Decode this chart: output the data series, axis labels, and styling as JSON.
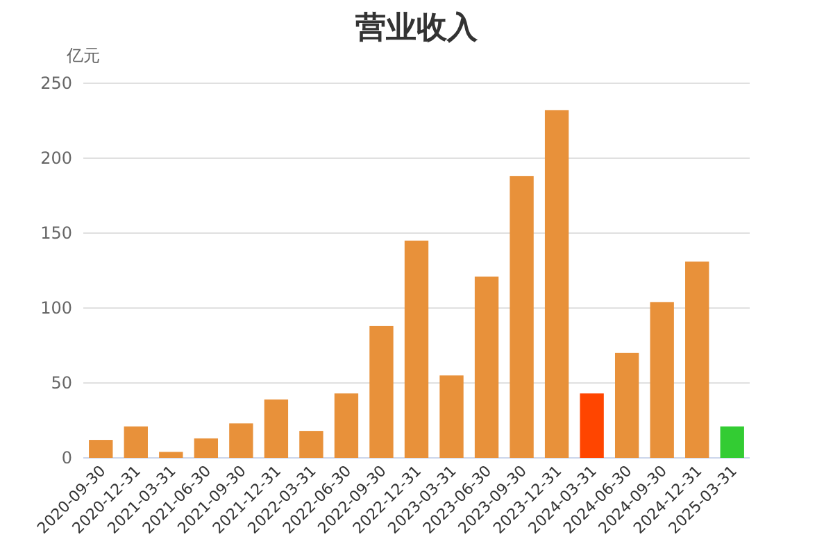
{
  "chart_data": {
    "type": "bar",
    "title": "营业收入",
    "ylabel": "亿元",
    "categories": [
      "2020-09-30",
      "2020-12-31",
      "2021-03-31",
      "2021-06-30",
      "2021-09-30",
      "2021-12-31",
      "2022-03-31",
      "2022-06-30",
      "2022-09-30",
      "2022-12-31",
      "2023-03-31",
      "2023-06-30",
      "2023-09-30",
      "2023-12-31",
      "2024-03-31",
      "2024-06-30",
      "2024-09-30",
      "2024-12-31",
      "2025-03-31"
    ],
    "values": [
      12,
      21,
      4,
      13,
      23,
      39,
      18,
      43,
      88,
      145,
      55,
      121,
      188,
      232,
      43,
      70,
      104,
      131,
      21
    ],
    "colors": [
      "#e8913a",
      "#e8913a",
      "#e8913a",
      "#e8913a",
      "#e8913a",
      "#e8913a",
      "#e8913a",
      "#e8913a",
      "#e8913a",
      "#e8913a",
      "#e8913a",
      "#e8913a",
      "#e8913a",
      "#e8913a",
      "#ff4500",
      "#e8913a",
      "#e8913a",
      "#e8913a",
      "#33cc33"
    ],
    "ylim": [
      0,
      250
    ],
    "yticks": [
      0,
      50,
      100,
      150,
      200,
      250
    ],
    "grid": "y"
  }
}
